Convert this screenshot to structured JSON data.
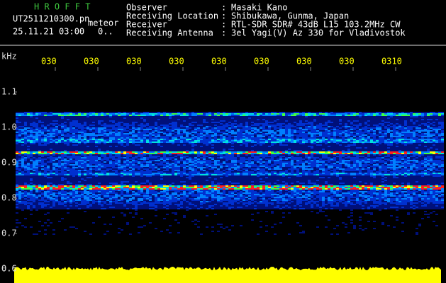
{
  "header": {
    "app_title": "H R O F F T",
    "file_name": "UT2511210300.pn",
    "mode": "meteor",
    "timestamp": "25.11.21 03:00",
    "counter": "0..",
    "fields": [
      {
        "label": "Observer",
        "value": "Masaki Kano"
      },
      {
        "label": "Receiving Location",
        "value": "Shibukawa, Gunma, Japan"
      },
      {
        "label": "Receiver",
        "value": "RTL-SDR SDR# 43dB L15 103.2MHz CW"
      },
      {
        "label": "Receiving Antenna",
        "value": "3el Yagi(V) Az 330 for Vladivostok"
      }
    ],
    "separator": ":"
  },
  "spectrogram": {
    "y_unit": "kHz",
    "y_labels": [
      "1.1",
      "1.0",
      "0.9",
      "0.8",
      "0.7",
      "0.6"
    ],
    "time_labels": [
      "030",
      "030",
      "030",
      "030",
      "030",
      "030",
      "030",
      "030",
      "0310"
    ]
  }
}
